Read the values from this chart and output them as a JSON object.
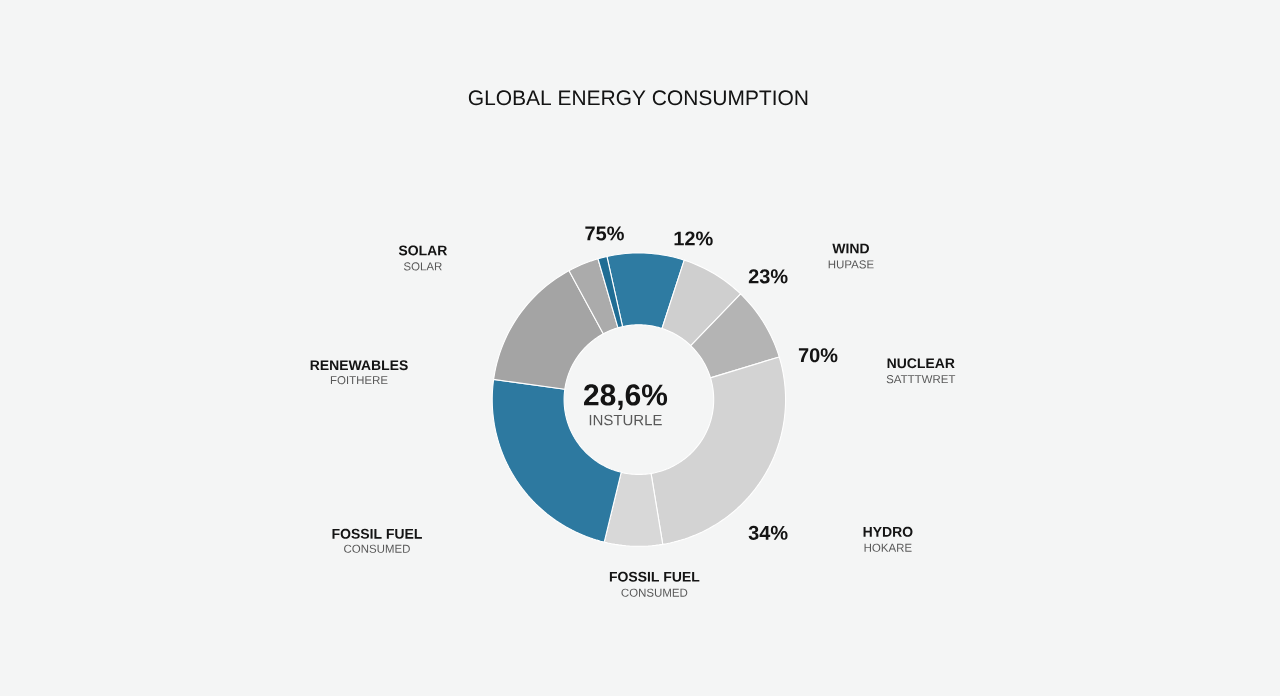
{
  "chart_data": {
    "type": "donut",
    "title": "GLOBAL ENERGY CONSUMPTION",
    "categories": [
      null,
      null,
      null,
      null,
      null,
      null,
      null,
      null,
      null
    ],
    "values": [
      8.5,
      7.2,
      8.1,
      27.1,
      6.4,
      23.4,
      14.9,
      3.4,
      1.0
    ],
    "colors": [
      "#2e7ba2",
      "#cfcfcf",
      "#b4b4b4",
      "#d3d3d3",
      "#d8d8d8",
      "#2d79a0",
      "#a4a4a4",
      "#ababab",
      "#1f6d94"
    ],
    "annotations": [
      "75%",
      "12%",
      "23%",
      "70%",
      "34%",
      "28,6%",
      "INSTURLE",
      "SOLAR",
      "SOLAR",
      "WIND",
      "HUPASE",
      "RENEWABLES",
      "FOITHERE",
      "NUCLEAR",
      "SATTTWRET",
      "FOSSIL FUEL",
      "CONSUMED",
      "HYDRO",
      "HOKARE",
      "FOSSIL FUEL",
      "CONSUMED"
    ]
  }
}
